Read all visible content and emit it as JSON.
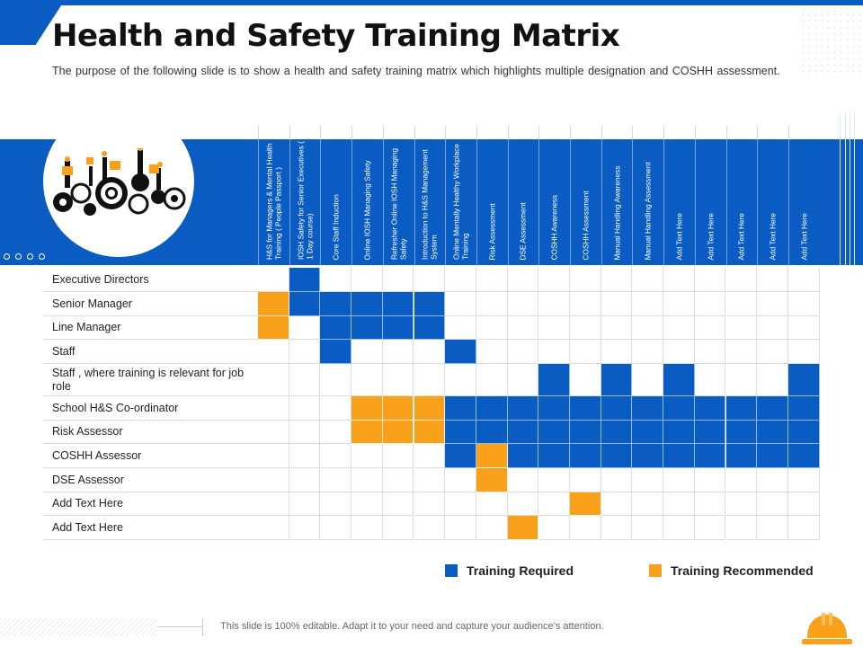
{
  "title": "Health and Safety Training Matrix",
  "subtitle": "The purpose of the following slide is to show a health and safety training matrix which highlights multiple designation and COSHH assessment.",
  "colors": {
    "brand_blue": "#0a5cc2",
    "required": "#0a5cc2",
    "recommended": "#f9a11b"
  },
  "illustration": "workers-on-gears-icon",
  "columns": [
    "H&S for Managers & Mental Health Training ( People Passport )",
    "IOSH Safety for Senior Executives ( 1 Day course)",
    "Core Staff Induction",
    "Online IOSH Managing Safety",
    "Refresher Online IOSH Managing Safety",
    "Introduction to H&S Management System",
    "Online Mentally Healthy Workplace Training",
    "Risk Assessment",
    "DSE Assessment",
    "COSHH Awareness",
    "COSHH Assessment",
    "Manual Handling Awareness",
    "Manual Handling Assessment",
    "Add Text Here",
    "Add Text Here",
    "Add Text Here",
    "Add Text Here",
    "Add Text Here"
  ],
  "rows": [
    {
      "label": "Executive Directors",
      "cells": [
        "",
        "R",
        "",
        "",
        "",
        "",
        "",
        "",
        "",
        "",
        "",
        "",
        "",
        "",
        "",
        "",
        "",
        ""
      ]
    },
    {
      "label": "Senior Manager",
      "cells": [
        "O",
        "R",
        "R",
        "R",
        "R",
        "R",
        "",
        "",
        "",
        "",
        "",
        "",
        "",
        "",
        "",
        "",
        "",
        ""
      ]
    },
    {
      "label": "Line Manager",
      "cells": [
        "O",
        "",
        "R",
        "R",
        "R",
        "R",
        "",
        "",
        "",
        "",
        "",
        "",
        "",
        "",
        "",
        "",
        "",
        ""
      ]
    },
    {
      "label": "Staff",
      "cells": [
        "",
        "",
        "R",
        "",
        "",
        "",
        "R",
        "",
        "",
        "",
        "",
        "",
        "",
        "",
        "",
        "",
        "",
        ""
      ]
    },
    {
      "label": "Staff , where training is relevant for job role",
      "cells": [
        "",
        "",
        "",
        "",
        "",
        "",
        "",
        "",
        "",
        "R",
        "",
        "R",
        "",
        "R",
        "",
        "",
        "",
        "R"
      ]
    },
    {
      "label": "School H&S Co-ordinator",
      "cells": [
        "",
        "",
        "",
        "O",
        "O",
        "O",
        "R",
        "R",
        "R",
        "R",
        "R",
        "R",
        "R",
        "R",
        "R",
        "R",
        "R",
        "R"
      ]
    },
    {
      "label": "Risk Assessor",
      "cells": [
        "",
        "",
        "",
        "O",
        "O",
        "O",
        "R",
        "R",
        "R",
        "R",
        "R",
        "R",
        "R",
        "R",
        "R",
        "R",
        "R",
        "R"
      ]
    },
    {
      "label": "COSHH Assessor",
      "cells": [
        "",
        "",
        "",
        "",
        "",
        "",
        "R",
        "O",
        "R",
        "R",
        "R",
        "R",
        "R",
        "R",
        "R",
        "R",
        "R",
        "R"
      ]
    },
    {
      "label": "DSE Assessor",
      "cells": [
        "",
        "",
        "",
        "",
        "",
        "",
        "",
        "O",
        "",
        "",
        "",
        "",
        "",
        "",
        "",
        "",
        "",
        ""
      ]
    },
    {
      "label": "Add Text Here",
      "cells": [
        "",
        "",
        "",
        "",
        "",
        "",
        "",
        "",
        "",
        "",
        "O",
        "",
        "",
        "",
        "",
        "",
        "",
        ""
      ]
    },
    {
      "label": "Add Text Here",
      "cells": [
        "",
        "",
        "",
        "",
        "",
        "",
        "",
        "",
        "O",
        "",
        "",
        "",
        "",
        "",
        "",
        "",
        "",
        ""
      ]
    }
  ],
  "legend": {
    "required_label": "Training Required",
    "recommended_label": "Training Recommended"
  },
  "footer": {
    "text": "This slide is 100% editable. Adapt it to your need and capture your audience’s attention.",
    "icon": "hard-hat-icon"
  }
}
